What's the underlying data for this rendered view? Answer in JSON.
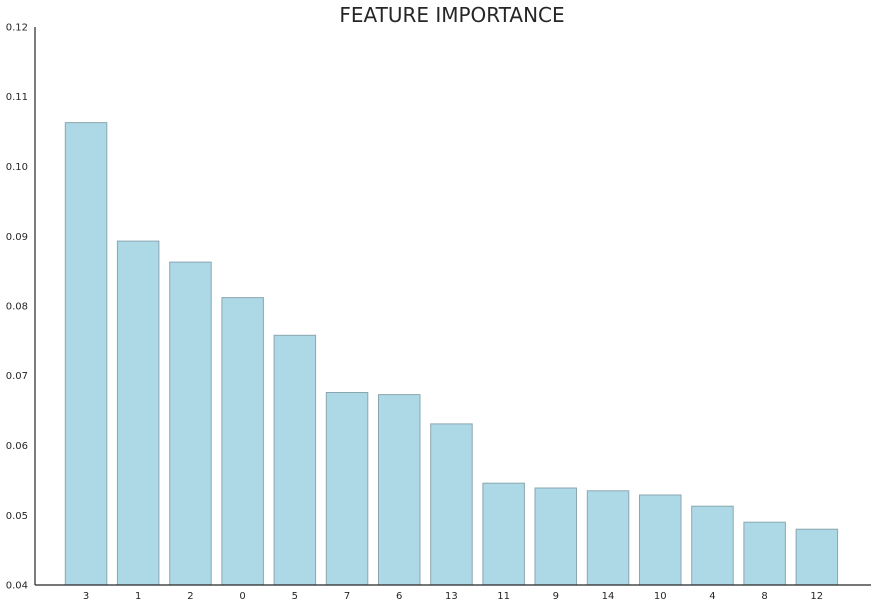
{
  "chart_data": {
    "type": "bar",
    "title": "FEATURE IMPORTANCE",
    "xlabel": "",
    "ylabel": "",
    "categories": [
      "3",
      "1",
      "2",
      "0",
      "5",
      "7",
      "6",
      "13",
      "11",
      "9",
      "14",
      "10",
      "4",
      "8",
      "12"
    ],
    "values": [
      0.1063,
      0.0893,
      0.0863,
      0.0812,
      0.0758,
      0.0676,
      0.0673,
      0.0631,
      0.0546,
      0.0539,
      0.0535,
      0.0529,
      0.0513,
      0.049,
      0.048
    ],
    "ylim": [
      0.04,
      0.12
    ],
    "yticks": [
      "0.04",
      "0.05",
      "0.06",
      "0.07",
      "0.08",
      "0.09",
      "0.10",
      "0.11",
      "0.12"
    ],
    "grid": false,
    "bar_color": "#add8e6",
    "bar_edge_color": "#8aa7b0"
  }
}
